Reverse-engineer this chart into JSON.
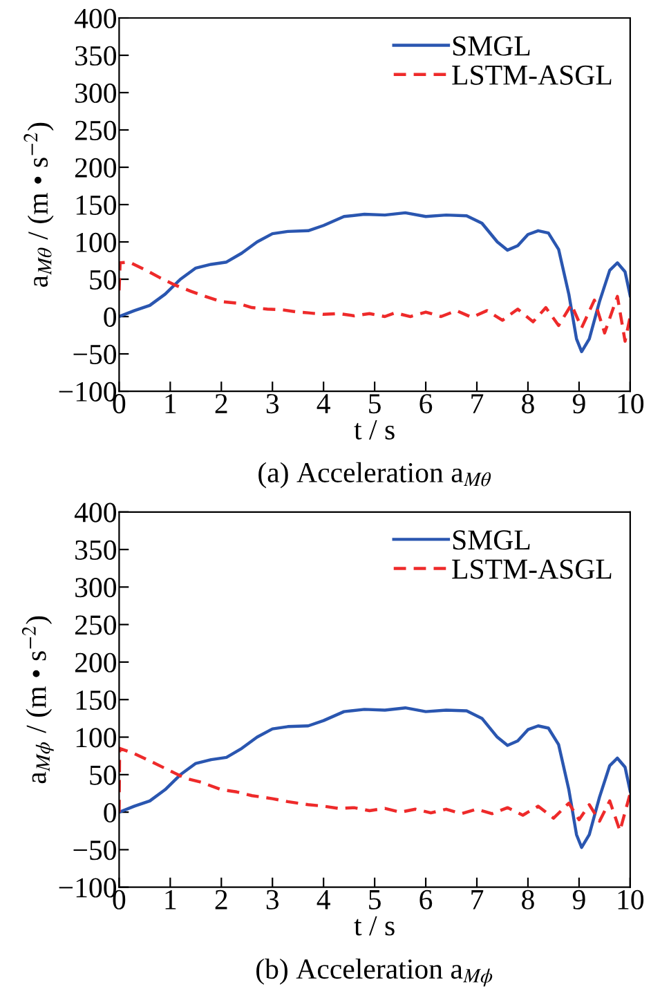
{
  "chart_data": [
    {
      "type": "line",
      "xlabel": "t / s",
      "ylabel": "a$_{Mθ}$ / (m • s$^{−2}$)",
      "annotations": [
        "(a) Acceleration a$_{Mθ}$"
      ],
      "xlim": [
        0,
        10
      ],
      "ylim": [
        -100,
        400
      ],
      "xticks": [
        0,
        1,
        2,
        3,
        4,
        5,
        6,
        7,
        8,
        9,
        10
      ],
      "yticks": [
        -100,
        -50,
        0,
        50,
        100,
        150,
        200,
        250,
        300,
        350,
        400
      ],
      "legend": "top right",
      "grid": false,
      "series": [
        {
          "name": "SMGL",
          "color": "#2a56b0",
          "line_style": "solid",
          "x": [
            0,
            0.3,
            0.6,
            0.9,
            1.2,
            1.5,
            1.8,
            2.1,
            2.4,
            2.7,
            3.0,
            3.3,
            3.7,
            4.0,
            4.4,
            4.8,
            5.2,
            5.6,
            6.0,
            6.4,
            6.8,
            7.1,
            7.4,
            7.6,
            7.8,
            8.0,
            8.2,
            8.4,
            8.6,
            8.8,
            8.95,
            9.05,
            9.2,
            9.4,
            9.6,
            9.75,
            9.9,
            10
          ],
          "values": [
            0,
            8,
            15,
            30,
            50,
            65,
            70,
            73,
            85,
            100,
            111,
            114,
            115,
            122,
            134,
            137,
            136,
            139,
            134,
            136,
            135,
            125,
            100,
            89,
            95,
            110,
            115,
            112,
            90,
            30,
            -30,
            -47,
            -30,
            20,
            62,
            72,
            60,
            28
          ]
        },
        {
          "name": "LSTM-ASGL",
          "color": "#ee2a2a",
          "line_style": "dashed",
          "x": [
            0,
            0.02,
            0.2,
            0.5,
            0.8,
            1.1,
            1.4,
            1.6,
            2.0,
            2.3,
            2.6,
            2.9,
            3.2,
            3.5,
            3.7,
            4.0,
            4.3,
            4.6,
            4.9,
            5.2,
            5.4,
            5.7,
            6.0,
            6.3,
            6.6,
            6.9,
            7.2,
            7.5,
            7.8,
            8.1,
            8.35,
            8.6,
            8.85,
            9.05,
            9.3,
            9.5,
            9.75,
            9.9,
            10
          ],
          "values": [
            35,
            72,
            73,
            63,
            52,
            42,
            34,
            29,
            20,
            18,
            12,
            10,
            9,
            6,
            5,
            3,
            4,
            1,
            4,
            0,
            5,
            0,
            6,
            0,
            8,
            -1,
            8,
            -5,
            10,
            -7,
            12,
            -12,
            16,
            -15,
            22,
            -22,
            27,
            -33,
            0
          ]
        }
      ]
    },
    {
      "type": "line",
      "xlabel": "t / s",
      "ylabel": "a$_{Mϕ}$ / (m • s$^{−2}$)",
      "annotations": [
        "(b) Acceleration a$_{Mϕ}$"
      ],
      "xlim": [
        0,
        10
      ],
      "ylim": [
        -100,
        400
      ],
      "xticks": [
        0,
        1,
        2,
        3,
        4,
        5,
        6,
        7,
        8,
        9,
        10
      ],
      "yticks": [
        -100,
        -50,
        0,
        50,
        100,
        150,
        200,
        250,
        300,
        350,
        400
      ],
      "legend": "top right",
      "grid": false,
      "series": [
        {
          "name": "SMGL",
          "color": "#2a56b0",
          "line_style": "solid",
          "x": [
            0,
            0.3,
            0.6,
            0.9,
            1.2,
            1.5,
            1.8,
            2.1,
            2.4,
            2.7,
            3.0,
            3.3,
            3.7,
            4.0,
            4.4,
            4.8,
            5.2,
            5.6,
            6.0,
            6.4,
            6.8,
            7.1,
            7.4,
            7.6,
            7.8,
            8.0,
            8.2,
            8.4,
            8.6,
            8.8,
            8.95,
            9.05,
            9.2,
            9.4,
            9.6,
            9.75,
            9.9,
            10
          ],
          "values": [
            0,
            8,
            15,
            30,
            50,
            65,
            70,
            73,
            85,
            100,
            111,
            114,
            115,
            122,
            134,
            137,
            136,
            139,
            134,
            136,
            135,
            125,
            100,
            89,
            95,
            110,
            115,
            112,
            90,
            30,
            -30,
            -47,
            -30,
            20,
            62,
            72,
            60,
            28
          ]
        },
        {
          "name": "LSTM-ASGL",
          "color": "#ee2a2a",
          "line_style": "dashed",
          "x": [
            0,
            0.01,
            0.3,
            0.7,
            1.0,
            1.3,
            1.6,
            2.0,
            2.3,
            2.6,
            3.0,
            3.3,
            3.7,
            4.0,
            4.3,
            4.6,
            4.9,
            5.2,
            5.5,
            5.8,
            6.1,
            6.4,
            6.7,
            7.0,
            7.3,
            7.6,
            7.9,
            8.2,
            8.5,
            8.8,
            9.0,
            9.2,
            9.4,
            9.6,
            9.8,
            10
          ],
          "values": [
            0,
            85,
            78,
            65,
            55,
            45,
            40,
            30,
            27,
            22,
            18,
            14,
            10,
            8,
            5,
            6,
            2,
            5,
            0,
            4,
            -1,
            4,
            -2,
            4,
            -2,
            6,
            -4,
            8,
            -8,
            12,
            -10,
            10,
            -12,
            15,
            -25,
            25
          ]
        }
      ]
    }
  ]
}
